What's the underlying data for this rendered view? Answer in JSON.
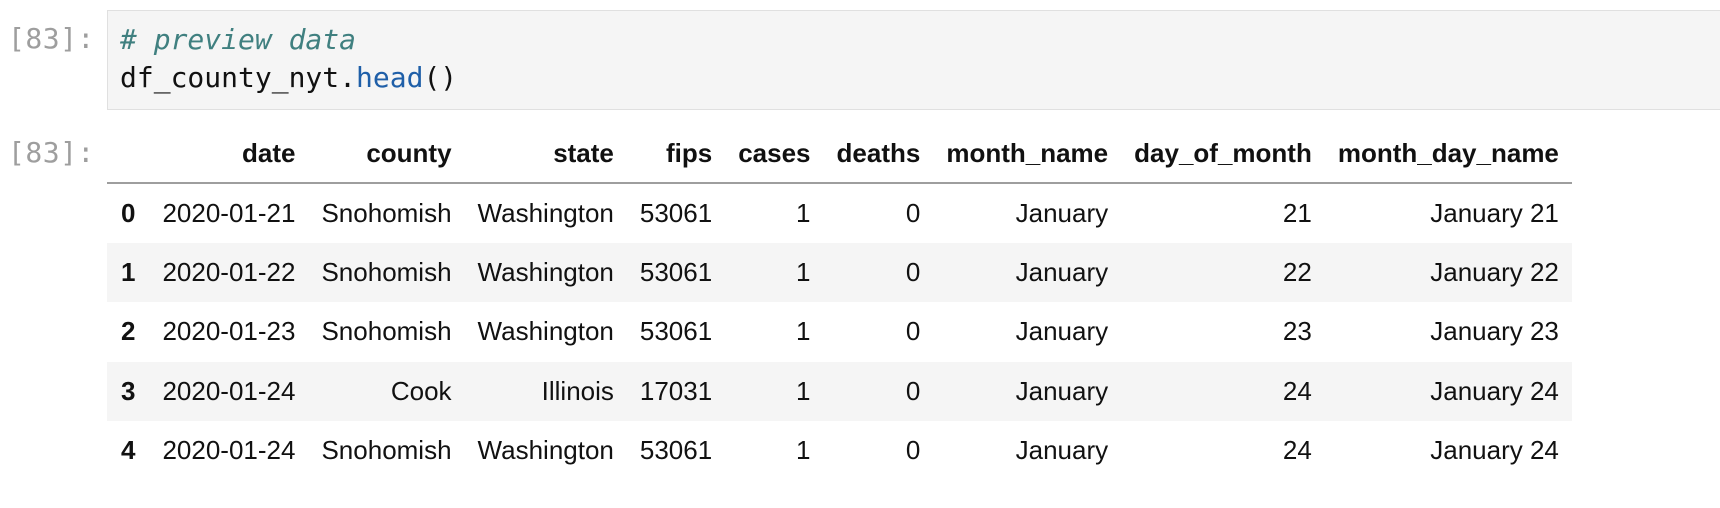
{
  "input_cell": {
    "prompt": "[83]:",
    "code": {
      "comment": "# preview data",
      "object": "df_county_nyt.",
      "method": "head",
      "call": "()"
    }
  },
  "output_cell": {
    "prompt": "[83]:",
    "table": {
      "index_header": "",
      "columns": [
        "date",
        "county",
        "state",
        "fips",
        "cases",
        "deaths",
        "month_name",
        "day_of_month",
        "month_day_name"
      ],
      "rows": [
        {
          "index": "0",
          "cells": [
            "2020-01-21",
            "Snohomish",
            "Washington",
            "53061",
            "1",
            "0",
            "January",
            "21",
            "January 21"
          ]
        },
        {
          "index": "1",
          "cells": [
            "2020-01-22",
            "Snohomish",
            "Washington",
            "53061",
            "1",
            "0",
            "January",
            "22",
            "January 22"
          ]
        },
        {
          "index": "2",
          "cells": [
            "2020-01-23",
            "Snohomish",
            "Washington",
            "53061",
            "1",
            "0",
            "January",
            "23",
            "January 23"
          ]
        },
        {
          "index": "3",
          "cells": [
            "2020-01-24",
            "Cook",
            "Illinois",
            "17031",
            "1",
            "0",
            "January",
            "24",
            "January 24"
          ]
        },
        {
          "index": "4",
          "cells": [
            "2020-01-24",
            "Snohomish",
            "Washington",
            "53061",
            "1",
            "0",
            "January",
            "24",
            "January 24"
          ]
        }
      ]
    }
  },
  "colors": {
    "prompt": "#9e9e9e",
    "comment": "#408080",
    "method": "#1f5fa8",
    "code_background": "#f5f5f5",
    "striped_row": "#f5f5f5"
  }
}
